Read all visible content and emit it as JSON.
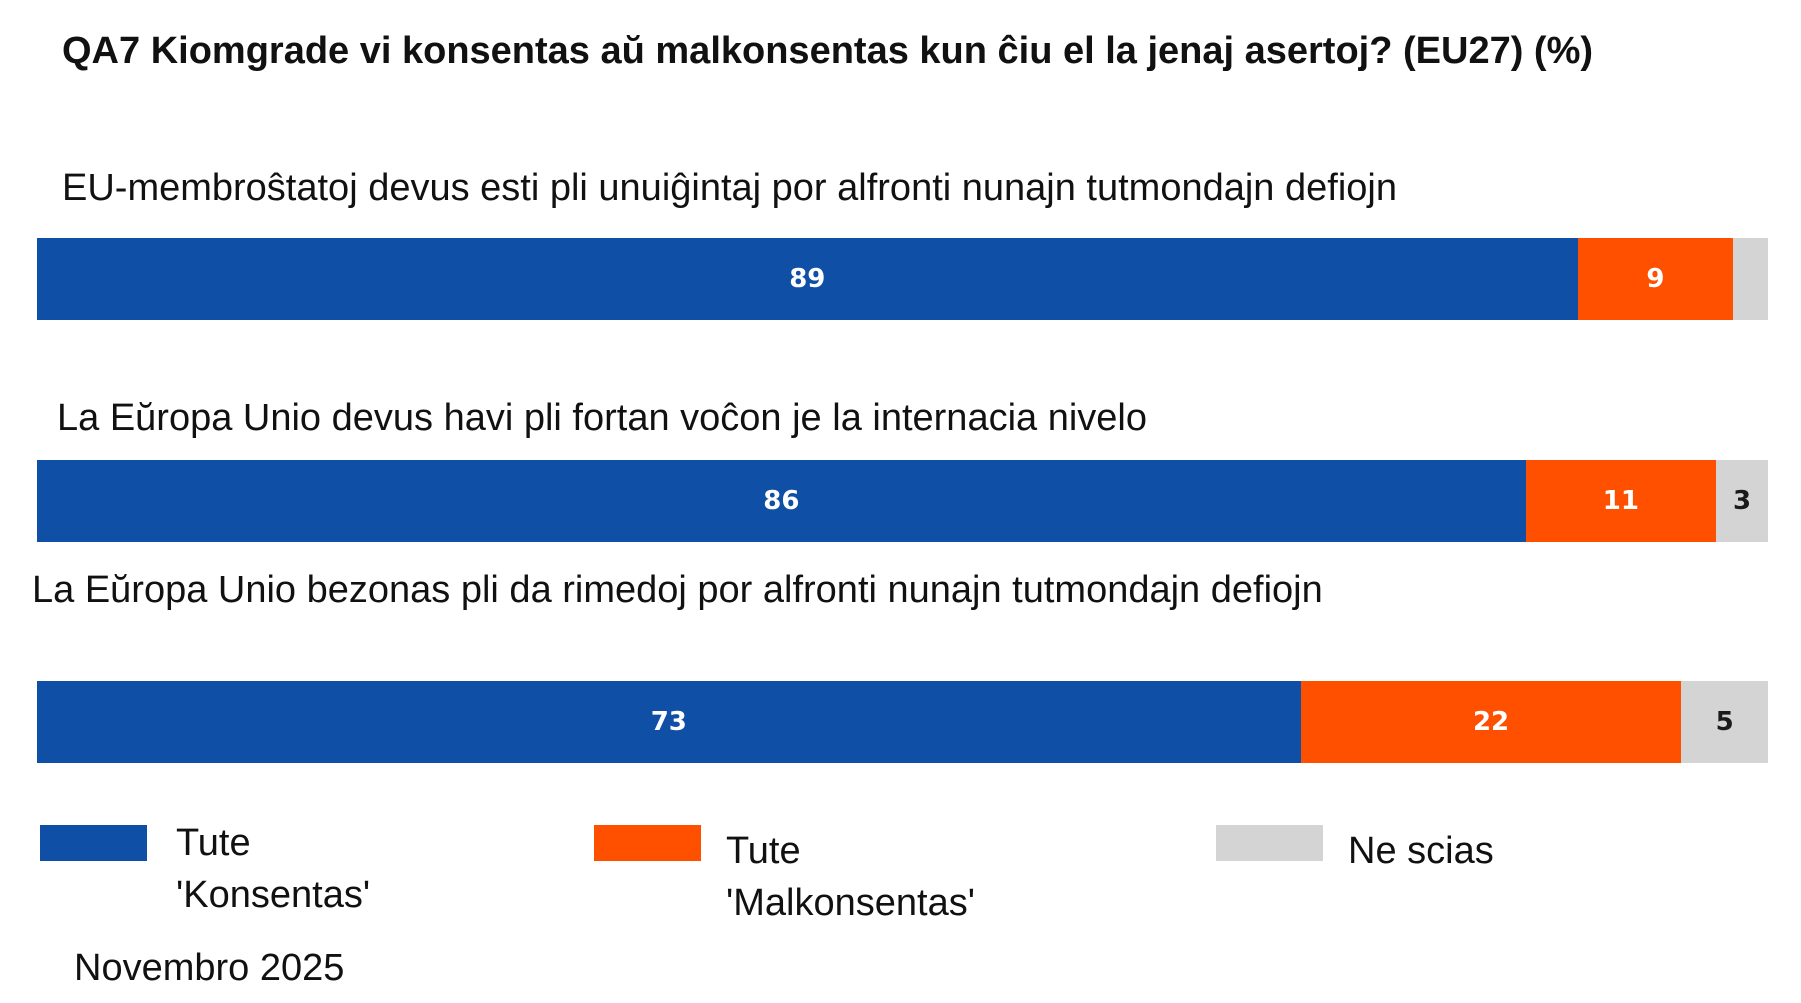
{
  "chart_data": {
    "type": "bar",
    "orientation": "horizontal",
    "stacked": true,
    "title": "QA7 Kiomgrade vi konsentas aŭ malkonsentas kun ĉiu el la jenaj asertoj? (EU27) (%)",
    "categories": [
      "EU-membroŝtatoj devus esti pli unuiĝintaj por alfronti nunajn tutmondajn defiojn",
      "La Eŭropa Unio devus havi pli fortan voĉon je la internacia nivelo",
      "La Eŭropa Unio bezonas pli da rimedoj por alfronti nunajn tutmondajn defiojn"
    ],
    "series": [
      {
        "name": "Tute 'Konsentas'",
        "color": "#0f4fa5",
        "values": [
          89,
          86,
          73
        ],
        "labels": [
          "89",
          "86",
          "73"
        ]
      },
      {
        "name": "Tute 'Malkonsentas'",
        "color": "#ff5000",
        "values": [
          9,
          11,
          22
        ],
        "labels": [
          "9",
          "11",
          "22"
        ]
      },
      {
        "name": "Ne scias",
        "color": "#d4d4d4",
        "values": [
          2,
          3,
          5
        ],
        "labels": [
          "",
          "3",
          "5"
        ]
      }
    ],
    "xlim": [
      0,
      100
    ],
    "grid": false,
    "legend_position": "bottom",
    "footnote": "Novembro 2025"
  }
}
